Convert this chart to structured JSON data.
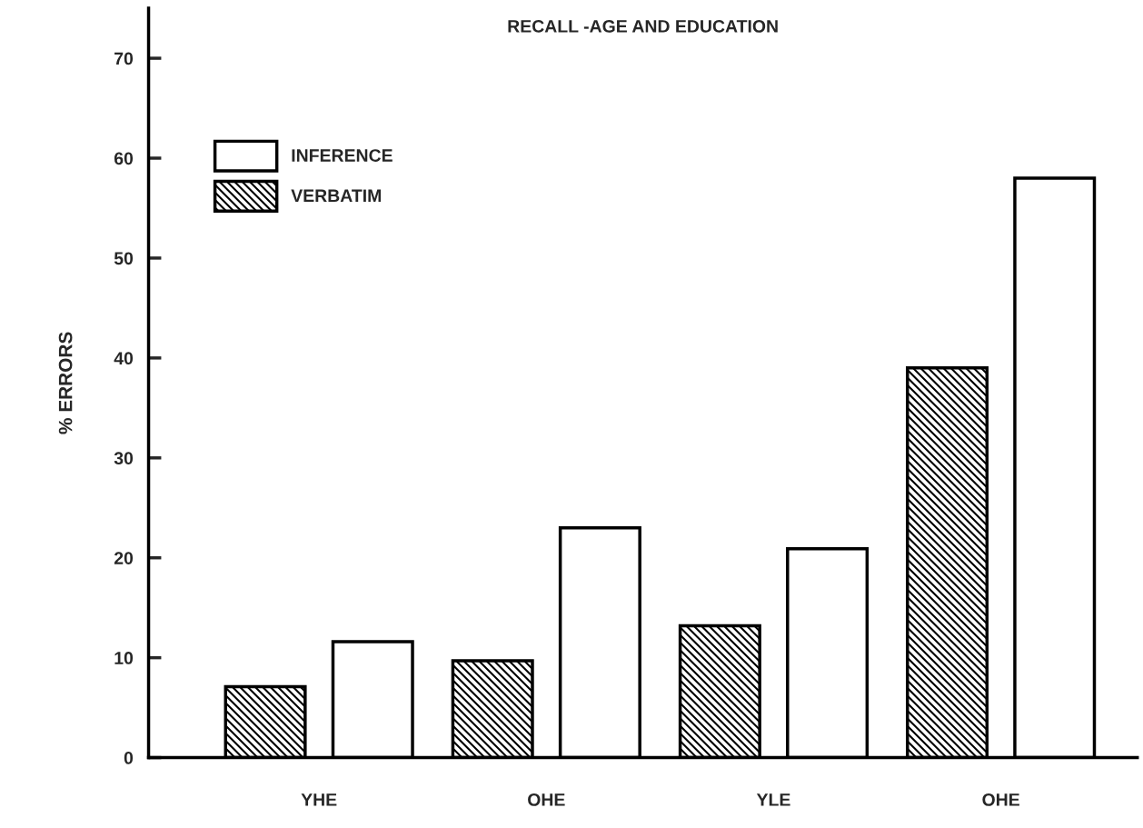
{
  "chart_data": {
    "type": "bar",
    "title": "RECALL -AGE AND EDUCATION",
    "ylabel": "% ERRORS",
    "categories": [
      "YHE",
      "OHE",
      "YLE",
      "OHE"
    ],
    "series": [
      {
        "name": "INFERENCE",
        "color": "#ffffff",
        "values": [
          11.6,
          23,
          20.9,
          58
        ]
      },
      {
        "name": "VERBATIM",
        "color": "#000000",
        "values": [
          7.1,
          9.7,
          13.2,
          39
        ]
      }
    ],
    "ylim": [
      0,
      75
    ],
    "yticks": [
      0,
      10,
      20,
      30,
      40,
      50,
      60,
      70
    ],
    "grid": false,
    "legend": "top left"
  }
}
